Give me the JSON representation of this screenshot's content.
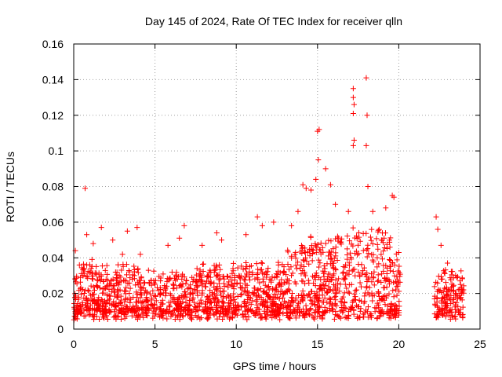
{
  "chart_data": {
    "type": "scatter",
    "title": "Day 145 of 2024, Rate Of TEC Index for receiver qlln",
    "xlabel": "GPS time / hours",
    "ylabel": "ROTI / TECUs",
    "xlim": [
      0,
      25
    ],
    "ylim": [
      0,
      0.16
    ],
    "xticks": [
      0,
      5,
      10,
      15,
      20,
      25
    ],
    "xtick_labels": [
      "0",
      "5",
      "10",
      "15",
      "20",
      "25"
    ],
    "yticks": [
      0,
      0.02,
      0.04,
      0.06,
      0.08,
      0.1,
      0.12,
      0.14,
      0.16
    ],
    "ytick_labels": [
      "0",
      "0.02",
      "0.04",
      "0.06",
      "0.08",
      "0.1",
      "0.12",
      "0.14",
      "0.16"
    ],
    "grid": true,
    "marker": "+",
    "color": "#ff0000",
    "data_gap_hours": [
      20.1,
      22.2
    ],
    "series": [
      {
        "name": "ROTI",
        "points": [
          [
            0.1,
            0.044
          ],
          [
            0.35,
            0.036
          ],
          [
            0.7,
            0.079
          ],
          [
            0.8,
            0.053
          ],
          [
            1.2,
            0.048
          ],
          [
            1.7,
            0.057
          ],
          [
            2.4,
            0.05
          ],
          [
            3.0,
            0.042
          ],
          [
            3.3,
            0.055
          ],
          [
            3.9,
            0.057
          ],
          [
            4.1,
            0.042
          ],
          [
            4.6,
            0.033
          ],
          [
            5.8,
            0.047
          ],
          [
            6.5,
            0.051
          ],
          [
            6.8,
            0.058
          ],
          [
            7.9,
            0.047
          ],
          [
            8.8,
            0.054
          ],
          [
            9.1,
            0.05
          ],
          [
            10.6,
            0.053
          ],
          [
            11.3,
            0.063
          ],
          [
            11.6,
            0.058
          ],
          [
            12.3,
            0.06
          ],
          [
            13.4,
            0.058
          ],
          [
            13.8,
            0.066
          ],
          [
            14.1,
            0.081
          ],
          [
            14.3,
            0.079
          ],
          [
            14.6,
            0.078
          ],
          [
            14.9,
            0.084
          ],
          [
            15.0,
            0.111
          ],
          [
            15.1,
            0.112
          ],
          [
            15.05,
            0.095
          ],
          [
            15.5,
            0.09
          ],
          [
            15.8,
            0.081
          ],
          [
            16.1,
            0.07
          ],
          [
            16.9,
            0.066
          ],
          [
            17.2,
            0.135
          ],
          [
            17.2,
            0.13
          ],
          [
            17.25,
            0.126
          ],
          [
            17.2,
            0.121
          ],
          [
            17.25,
            0.106
          ],
          [
            17.2,
            0.103
          ],
          [
            18.0,
            0.141
          ],
          [
            18.05,
            0.12
          ],
          [
            18.0,
            0.103
          ],
          [
            18.1,
            0.08
          ],
          [
            18.4,
            0.066
          ],
          [
            19.2,
            0.068
          ],
          [
            19.6,
            0.075
          ],
          [
            19.7,
            0.074
          ],
          [
            20.0,
            0.043
          ],
          [
            22.3,
            0.063
          ],
          [
            22.4,
            0.056
          ],
          [
            22.6,
            0.047
          ],
          [
            23.0,
            0.037
          ],
          [
            23.8,
            0.025
          ]
        ]
      }
    ]
  }
}
